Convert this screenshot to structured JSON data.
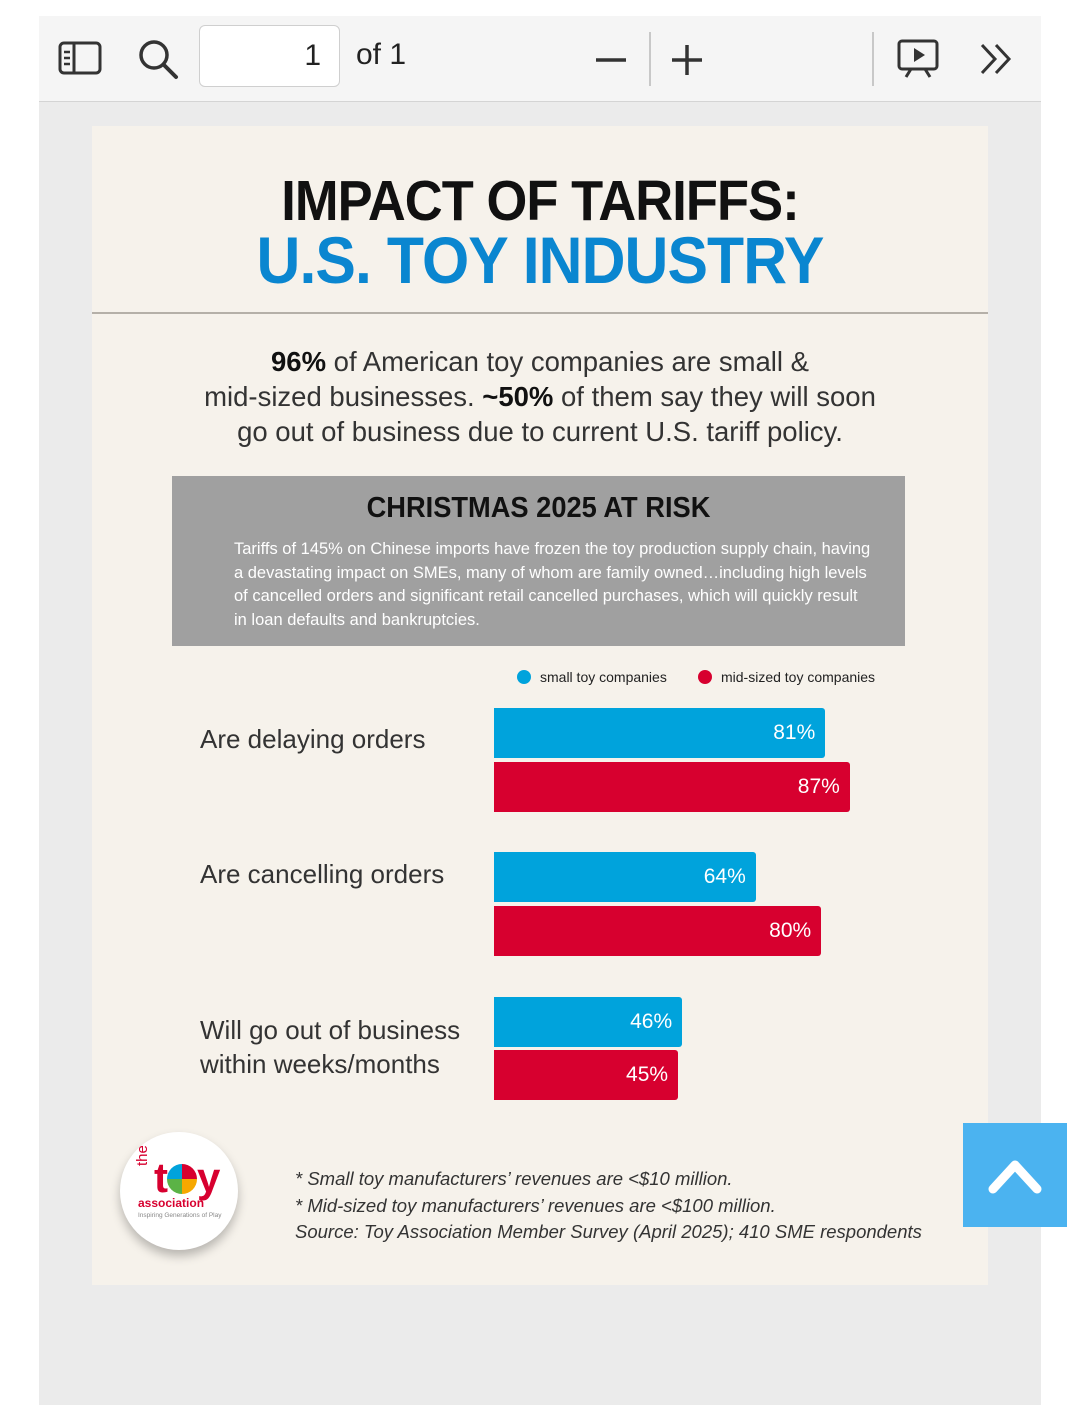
{
  "toolbar": {
    "page_number": "1",
    "page_of": "of 1",
    "icons": [
      "sidebar-icon",
      "search-icon",
      "zoom-out-icon",
      "zoom-in-icon",
      "presentation-icon",
      "more-tools-icon"
    ]
  },
  "document": {
    "title_line1": "IMPACT OF TARIFFS:",
    "title_line2": "U.S. TOY INDUSTRY",
    "intro": {
      "stat1": "96%",
      "text1": " of American toy companies are small &",
      "text2": "mid-sized businesses. ",
      "stat2": "~50%",
      "text3": " of them say they will soon",
      "text4": "go out of business due to current U.S. tariff policy."
    },
    "risk_box": {
      "title": "CHRISTMAS 2025 AT RISK",
      "body": "Tariffs of 145% on Chinese imports have frozen the toy production supply chain, having a devastating impact on SMEs, many of whom are family owned…including high levels of cancelled orders and significant retail cancelled purchases, which will quickly result in loan defaults and bankruptcies."
    },
    "notes": [
      "* Small toy manufacturers’ revenues are <$10 million.",
      "* Mid-sized toy manufacturers’  revenues are <$100 million.",
      "Source: Toy Association Member Survey (April 2025); 410 SME respondents"
    ],
    "logo": {
      "the": "the",
      "toy_t": "t",
      "toy_y": "y",
      "association": "association",
      "tagline": "Inspiring Generations of Play"
    }
  },
  "chart_data": {
    "type": "bar",
    "orientation": "horizontal",
    "categories": [
      "Are delaying orders",
      "Are cancelling orders",
      "Will go out of business within weeks/months"
    ],
    "series": [
      {
        "name": "small toy companies",
        "color": "#00a3dc",
        "values": [
          81,
          64,
          46
        ],
        "labels": [
          "81%",
          "64%",
          "46%"
        ]
      },
      {
        "name": "mid-sized toy companies",
        "color": "#d7002f",
        "values": [
          87,
          80,
          45
        ],
        "labels": [
          "87%",
          "80%",
          "45%"
        ]
      }
    ],
    "legend": "top-right",
    "xlim": [
      0,
      100
    ]
  }
}
